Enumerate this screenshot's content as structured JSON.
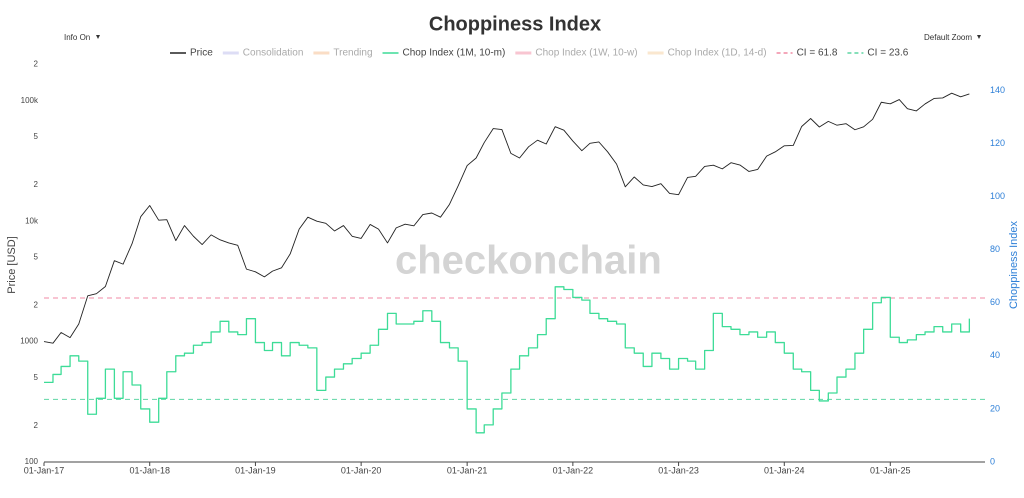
{
  "chart_data": {
    "type": "line",
    "title": "Choppiness Index",
    "controls": {
      "left": "Info On",
      "right": "Default Zoom"
    },
    "watermark": "checkonchain",
    "ylabel": "Price [USD]",
    "y2label": "Choppiness Index",
    "log_y": true,
    "grid": false,
    "legend": "top",
    "xlim": [
      "2017-01-01",
      "2025-11-24"
    ],
    "xticks": [
      {
        "value": "2017-01-01",
        "label": "01-Jan-17"
      },
      {
        "value": "2018-01-01",
        "label": "01-Jan-18"
      },
      {
        "value": "2019-01-01",
        "label": "01-Jan-19"
      },
      {
        "value": "2020-01-01",
        "label": "01-Jan-20"
      },
      {
        "value": "2021-01-01",
        "label": "01-Jan-21"
      },
      {
        "value": "2022-01-01",
        "label": "01-Jan-22"
      },
      {
        "value": "2023-01-01",
        "label": "01-Jan-23"
      },
      {
        "value": "2024-01-01",
        "label": "01-Jan-24"
      },
      {
        "value": "2025-01-01",
        "label": "01-Jan-25"
      }
    ],
    "ylim": [
      100,
      320000
    ],
    "yticks": [
      100,
      {
        "value": 200,
        "label": "2"
      },
      {
        "value": 500,
        "label": "5"
      },
      1000,
      {
        "value": 2000,
        "label": "2"
      },
      {
        "value": 5000,
        "label": "5"
      },
      {
        "value": 10000,
        "label": "10k"
      },
      {
        "value": 20000,
        "label": "2"
      },
      {
        "value": 50000,
        "label": "5"
      },
      {
        "value": 100000,
        "label": "100k"
      },
      {
        "value": 200000,
        "label": "2"
      }
    ],
    "y2lim": [
      0,
      159
    ],
    "y2ticks": [
      0,
      20,
      40,
      60,
      80,
      100,
      120,
      140
    ],
    "x": [
      "2017-01-01",
      "2017-02-01",
      "2017-03-01",
      "2017-04-01",
      "2017-05-01",
      "2017-06-01",
      "2017-07-01",
      "2017-08-01",
      "2017-09-01",
      "2017-10-01",
      "2017-11-01",
      "2017-12-01",
      "2018-01-01",
      "2018-02-01",
      "2018-03-01",
      "2018-04-01",
      "2018-05-01",
      "2018-06-01",
      "2018-07-01",
      "2018-08-01",
      "2018-09-01",
      "2018-10-01",
      "2018-11-01",
      "2018-12-01",
      "2019-01-01",
      "2019-02-01",
      "2019-03-01",
      "2019-04-01",
      "2019-05-01",
      "2019-06-01",
      "2019-07-01",
      "2019-08-01",
      "2019-09-01",
      "2019-10-01",
      "2019-11-01",
      "2019-12-01",
      "2020-01-01",
      "2020-02-01",
      "2020-03-01",
      "2020-04-01",
      "2020-05-01",
      "2020-06-01",
      "2020-07-01",
      "2020-08-01",
      "2020-09-01",
      "2020-10-01",
      "2020-11-01",
      "2020-12-01",
      "2021-01-01",
      "2021-02-01",
      "2021-03-01",
      "2021-04-01",
      "2021-05-01",
      "2021-06-01",
      "2021-07-01",
      "2021-08-01",
      "2021-09-01",
      "2021-10-01",
      "2021-11-01",
      "2021-12-01",
      "2022-01-01",
      "2022-02-01",
      "2022-03-01",
      "2022-04-01",
      "2022-05-01",
      "2022-06-01",
      "2022-07-01",
      "2022-08-01",
      "2022-09-01",
      "2022-10-01",
      "2022-11-01",
      "2022-12-01",
      "2023-01-01",
      "2023-02-01",
      "2023-03-01",
      "2023-04-01",
      "2023-05-01",
      "2023-06-01",
      "2023-07-01",
      "2023-08-01",
      "2023-09-01",
      "2023-10-01",
      "2023-11-01",
      "2023-12-01",
      "2024-01-01",
      "2024-02-01",
      "2024-03-01",
      "2024-04-01",
      "2024-05-01",
      "2024-06-01",
      "2024-07-01",
      "2024-08-01",
      "2024-09-01",
      "2024-10-01",
      "2024-11-01",
      "2024-12-01",
      "2025-01-01",
      "2025-02-01",
      "2025-03-01",
      "2025-04-01",
      "2025-05-01",
      "2025-06-01",
      "2025-07-01",
      "2025-08-01",
      "2025-09-01",
      "2025-10-01"
    ],
    "series": [
      {
        "name": "Price",
        "color": "#222222",
        "axis": "y",
        "visible": true,
        "values": [
          1000,
          970,
          1190,
          1080,
          1400,
          2400,
          2500,
          2870,
          4700,
          4400,
          6500,
          10900,
          13500,
          10200,
          10300,
          6900,
          9200,
          7500,
          6400,
          7700,
          7000,
          6600,
          6300,
          4000,
          3800,
          3450,
          3850,
          4100,
          5350,
          8600,
          10800,
          10000,
          9600,
          8300,
          9200,
          7500,
          7200,
          9400,
          8600,
          6600,
          8800,
          9450,
          9150,
          11350,
          11700,
          10800,
          13800,
          19700,
          29000,
          33500,
          45000,
          58800,
          57700,
          36600,
          33500,
          41500,
          47100,
          43800,
          61000,
          57000,
          46300,
          38500,
          44400,
          45500,
          37700,
          29800,
          19300,
          23300,
          20000,
          19400,
          20500,
          17000,
          16600,
          23100,
          23600,
          28500,
          29200,
          27200,
          30600,
          29300,
          25900,
          26900,
          34700,
          37700,
          42300,
          42600,
          61200,
          71300,
          60600,
          67500,
          62700,
          64600,
          57500,
          60800,
          70200,
          97300,
          94400,
          102400,
          86000,
          82500,
          94200,
          104600,
          105700,
          115700,
          108000,
          114000
        ]
      },
      {
        "name": "Consolidation",
        "color": "#c8c8f0",
        "visible": false
      },
      {
        "name": "Trending",
        "color": "#f8c8a0",
        "visible": false
      },
      {
        "name": "Chop Index (1M, 10-m)",
        "color": "#3ddc97",
        "axis": "y2",
        "line_shape": "hv",
        "visible": true,
        "values": [
          30,
          33,
          36,
          40,
          38,
          18,
          24,
          35,
          24,
          34,
          29,
          20,
          15,
          24,
          34,
          40,
          41,
          44,
          45,
          49,
          53,
          49,
          48,
          54,
          45,
          42,
          45,
          40,
          45,
          44,
          43,
          27,
          32,
          35,
          37,
          39,
          41,
          44,
          50,
          56,
          52,
          52,
          53,
          57,
          53,
          45,
          43,
          38,
          20,
          11,
          14,
          20,
          26,
          35,
          40,
          43,
          48,
          54,
          66,
          65,
          62,
          61,
          56,
          54,
          53,
          52,
          43,
          41,
          36,
          41,
          39,
          35,
          39,
          38,
          35,
          42,
          56,
          51,
          50,
          48,
          49,
          47,
          49,
          45,
          41,
          35,
          34,
          27,
          23,
          26,
          32,
          35,
          41,
          50,
          60,
          62,
          47,
          45,
          46,
          48,
          49,
          51,
          49,
          52,
          49,
          54
        ]
      },
      {
        "name": "Chop Index (1W, 10-w)",
        "color": "#f4a0b4",
        "visible": false
      },
      {
        "name": "Chop Index (1D, 14-d)",
        "color": "#f8d8b0",
        "visible": false
      }
    ],
    "hlines": [
      {
        "name": "CI = 61.8",
        "value": 61.8,
        "color": "#f08aa4",
        "axis": "y2"
      },
      {
        "name": "CI = 23.6",
        "value": 23.6,
        "color": "#5fd6a4",
        "axis": "y2"
      }
    ]
  }
}
